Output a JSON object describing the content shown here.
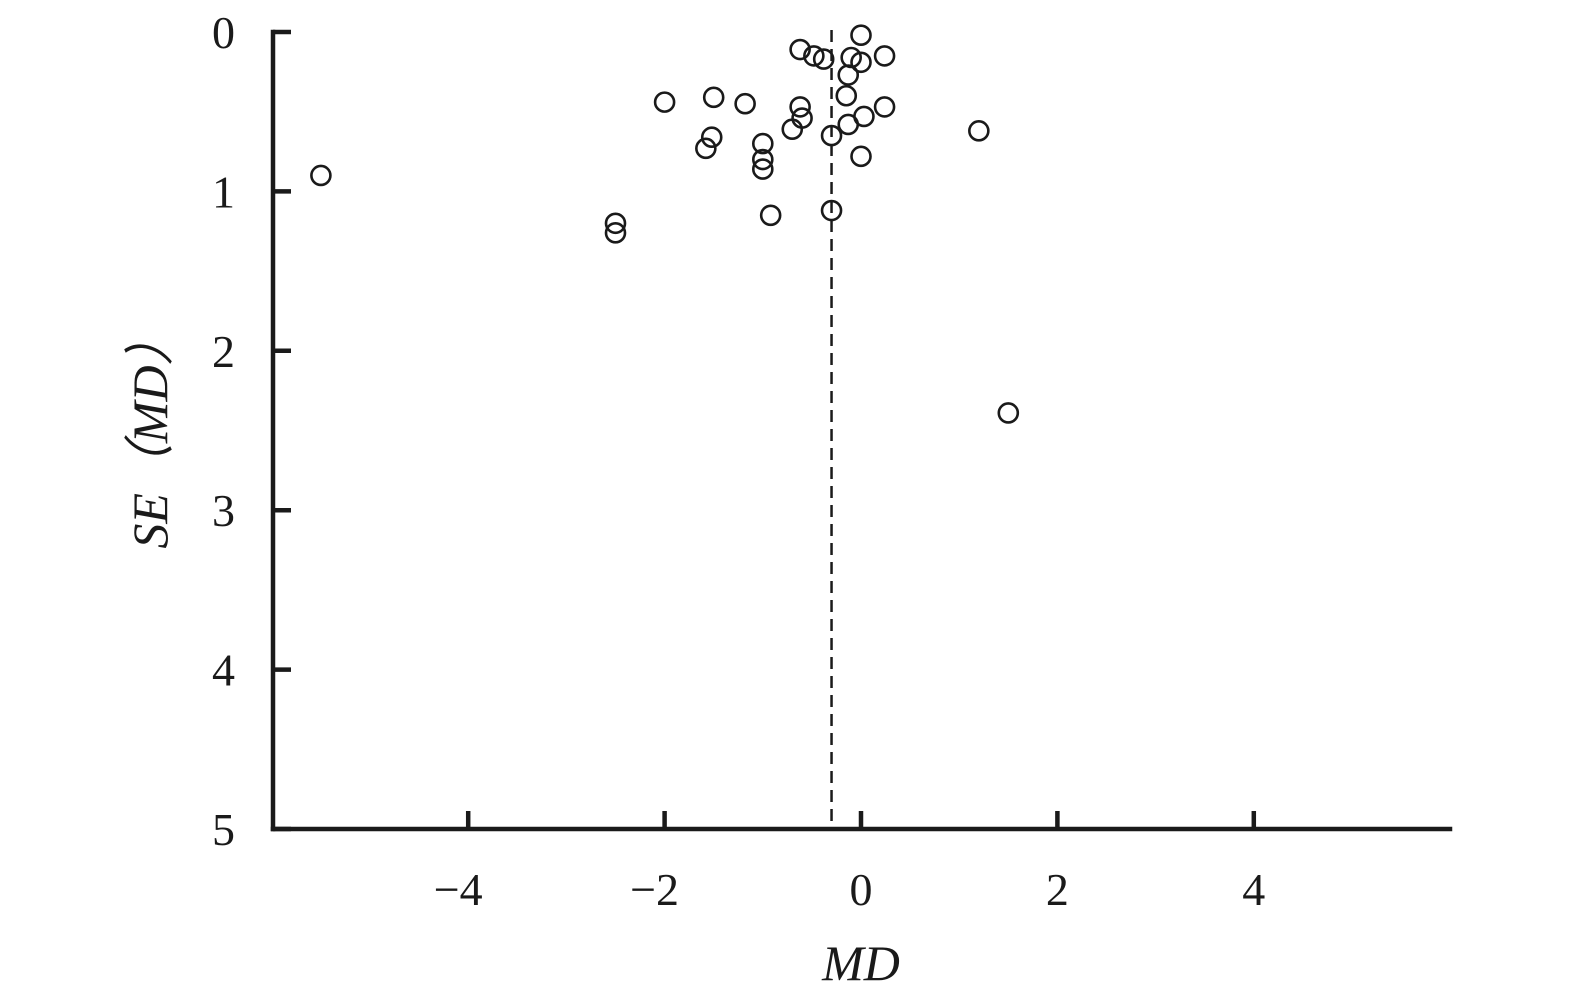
{
  "chart_data": {
    "type": "scatter",
    "title": "",
    "xlabel": "MD",
    "ylabel": "SE（MD）",
    "xlim": [
      -6,
      6
    ],
    "ylim": [
      0,
      5
    ],
    "y_inverted": true,
    "grid": false,
    "x_ticks": [
      {
        "value": -4,
        "label": "−4"
      },
      {
        "value": -2,
        "label": "−2"
      },
      {
        "value": 0,
        "label": "0"
      },
      {
        "value": 2,
        "label": "2"
      },
      {
        "value": 4,
        "label": "4"
      }
    ],
    "y_ticks": [
      {
        "value": 0,
        "label": "0"
      },
      {
        "value": 1,
        "label": "1"
      },
      {
        "value": 2,
        "label": "2"
      },
      {
        "value": 3,
        "label": "3"
      },
      {
        "value": 4,
        "label": "4"
      },
      {
        "value": 5,
        "label": "5"
      }
    ],
    "reference_line_x": -0.3,
    "points": [
      {
        "x": 0.0,
        "y": 0.02
      },
      {
        "x": -0.62,
        "y": 0.11
      },
      {
        "x": -0.48,
        "y": 0.15
      },
      {
        "x": -0.38,
        "y": 0.17
      },
      {
        "x": -0.1,
        "y": 0.16
      },
      {
        "x": 0.0,
        "y": 0.19
      },
      {
        "x": 0.24,
        "y": 0.15
      },
      {
        "x": -0.13,
        "y": 0.27
      },
      {
        "x": -0.15,
        "y": 0.4
      },
      {
        "x": 0.24,
        "y": 0.47
      },
      {
        "x": -2.0,
        "y": 0.44
      },
      {
        "x": -1.5,
        "y": 0.41
      },
      {
        "x": -1.18,
        "y": 0.45
      },
      {
        "x": -0.62,
        "y": 0.47
      },
      {
        "x": -0.6,
        "y": 0.54
      },
      {
        "x": 0.03,
        "y": 0.53
      },
      {
        "x": -0.13,
        "y": 0.58
      },
      {
        "x": -0.7,
        "y": 0.61
      },
      {
        "x": -0.3,
        "y": 0.65
      },
      {
        "x": 1.2,
        "y": 0.62
      },
      {
        "x": -1.52,
        "y": 0.66
      },
      {
        "x": -1.58,
        "y": 0.73
      },
      {
        "x": -1.0,
        "y": 0.7
      },
      {
        "x": -1.0,
        "y": 0.8
      },
      {
        "x": -1.0,
        "y": 0.86
      },
      {
        "x": 0.0,
        "y": 0.78
      },
      {
        "x": -5.5,
        "y": 0.9
      },
      {
        "x": -2.5,
        "y": 1.2
      },
      {
        "x": -2.5,
        "y": 1.26
      },
      {
        "x": -0.92,
        "y": 1.15
      },
      {
        "x": -0.3,
        "y": 1.12
      },
      {
        "x": 1.5,
        "y": 2.39
      }
    ]
  }
}
